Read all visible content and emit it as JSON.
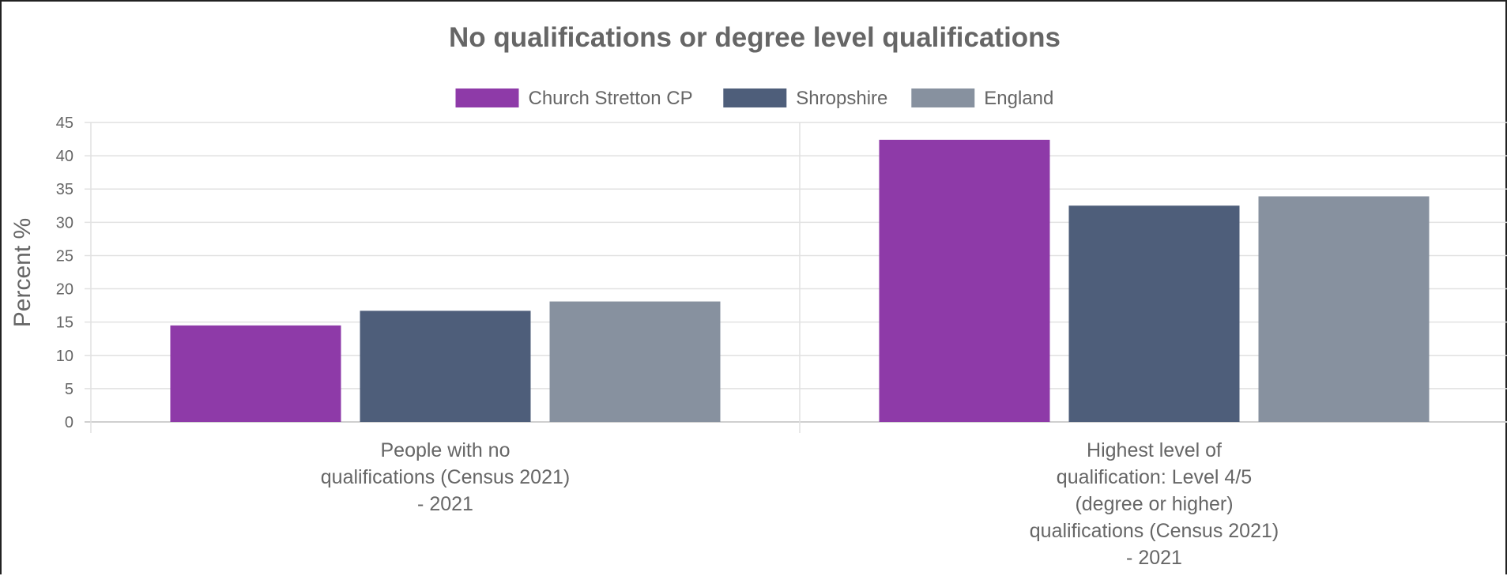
{
  "chart_data": {
    "type": "bar",
    "title": "No qualifications or degree level qualifications",
    "ylabel": "Percent %",
    "xlabel": "",
    "ylim": [
      0,
      45
    ],
    "yticks": [
      0,
      5,
      10,
      15,
      20,
      25,
      30,
      35,
      40,
      45
    ],
    "grid": true,
    "legend_position": "top",
    "categories": [
      [
        "People with no",
        "qualifications (Census 2021)",
        "- 2021"
      ],
      [
        "Highest level of",
        "qualification: Level 4/5",
        "(degree or higher)",
        "qualifications (Census 2021)",
        "- 2021"
      ]
    ],
    "series": [
      {
        "name": "Church Stretton CP",
        "color": "#8e3aa8",
        "values": [
          14.5,
          42.4
        ]
      },
      {
        "name": "Shropshire",
        "color": "#4e5e7a",
        "values": [
          16.7,
          32.5
        ]
      },
      {
        "name": "England",
        "color": "#87919f",
        "values": [
          18.1,
          33.9
        ]
      }
    ]
  }
}
